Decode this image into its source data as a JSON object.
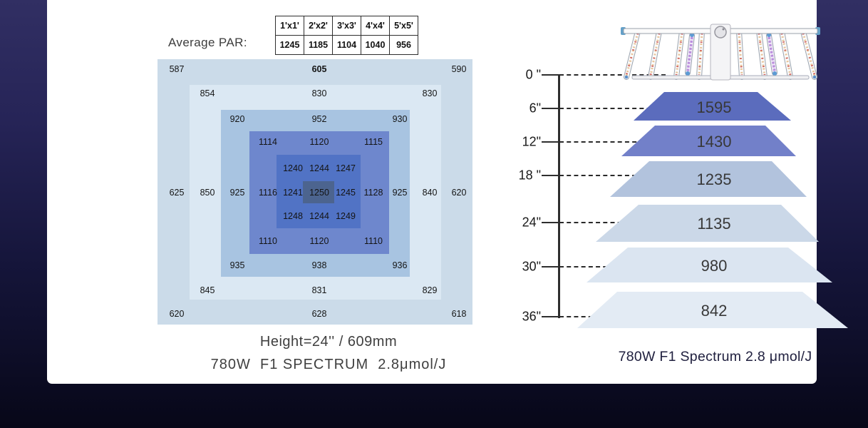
{
  "left_panel": {
    "average_par_label": "Average PAR:",
    "par_table": {
      "headers": [
        "1'x1'",
        "2'x2'",
        "3'x3'",
        "4'x4'",
        "5'x5'"
      ],
      "values": [
        "1245",
        "1185",
        "1104",
        "1040",
        "956"
      ]
    },
    "par_map": {
      "rings": [
        {
          "area": "5x5",
          "color": "#cbdbe9",
          "bold_index": 1,
          "values": [
            "587",
            "605",
            "590",
            "625",
            "620",
            "620",
            "628",
            "618"
          ]
        },
        {
          "area": "4x4",
          "color": "#dbe8f3",
          "bold_index": -1,
          "values": [
            "854",
            "830",
            "830",
            "850",
            "840",
            "845",
            "831",
            "829"
          ]
        },
        {
          "area": "3x3",
          "color": "#a8c4e1",
          "bold_index": -1,
          "values": [
            "920",
            "952",
            "930",
            "925",
            "925",
            "935",
            "938",
            "936"
          ]
        },
        {
          "area": "2x2",
          "color": "#6e87cd",
          "bold_index": -1,
          "values": [
            "1114",
            "1120",
            "1115",
            "1116",
            "1128",
            "1110",
            "1120",
            "1110"
          ]
        },
        {
          "area": "1x1",
          "color": "#5173c5",
          "bold_index": -1,
          "values": [
            "1240",
            "1244",
            "1247",
            "1241",
            "1245",
            "1248",
            "1244",
            "1249"
          ]
        },
        {
          "area": "center",
          "color": "#4c648f",
          "bold_index": -1,
          "values": [
            "1250"
          ]
        }
      ]
    },
    "caption_line1": "Height=24'' / 609mm",
    "caption_line2": "780W  F1 SPECTRUM  2.8μmol/J"
  },
  "right_panel": {
    "height_scale": [
      "0 \"",
      "6\"",
      "12\"",
      "18 \"",
      "24\"",
      "30\"",
      "36\""
    ],
    "ppfd_levels": [
      {
        "value": "1595",
        "color": "#5b6cbd"
      },
      {
        "value": "1430",
        "color": "#7280c9"
      },
      {
        "value": "1235",
        "color": "#b2c3dd"
      },
      {
        "value": "1135",
        "color": "#cbd8e8"
      },
      {
        "value": "980",
        "color": "#dbe5f1"
      },
      {
        "value": "842",
        "color": "#e3ebf4"
      }
    ],
    "caption": "780W F1 Spectrum 2.8 μmol/J"
  },
  "chart_data": [
    {
      "type": "heatmap",
      "title": "Average PAR map — Height=24'' / 609mm — 780W F1 SPECTRUM 2.8μmol/J",
      "categories": [
        "1'x1'",
        "2'x2'",
        "3'x3'",
        "4'x4'",
        "5'x5'"
      ],
      "series": [
        {
          "name": "Average PAR",
          "values": [
            1245,
            1185,
            1104,
            1040,
            956
          ]
        }
      ],
      "ring_values": {
        "ring_5x5": [
          587,
          605,
          590,
          625,
          620,
          620,
          628,
          618
        ],
        "ring_4x4": [
          854,
          830,
          830,
          850,
          840,
          845,
          831,
          829
        ],
        "ring_3x3": [
          920,
          952,
          930,
          925,
          925,
          935,
          938,
          936
        ],
        "ring_2x2": [
          1114,
          1120,
          1115,
          1116,
          1128,
          1110,
          1120,
          1110
        ],
        "block_1x1": [
          1240,
          1244,
          1247,
          1241,
          1250,
          1245,
          1248,
          1244,
          1249
        ],
        "center": 1250
      },
      "legend_position": "none",
      "grid": false
    },
    {
      "type": "bar",
      "title": "780W F1 Spectrum 2.8 μmol/J — PPFD vs hanging height",
      "categories": [
        "6\"",
        "12\"",
        "18\"",
        "24\"",
        "30\"",
        "36\""
      ],
      "values": [
        1595,
        1430,
        1235,
        1135,
        980,
        842
      ],
      "xlabel": "",
      "ylabel": "",
      "axis_ticks": [
        "0 \"",
        "6\"",
        "12\"",
        "18 \"",
        "24\"",
        "30\"",
        "36\""
      ],
      "legend_position": "none",
      "grid": false
    }
  ]
}
